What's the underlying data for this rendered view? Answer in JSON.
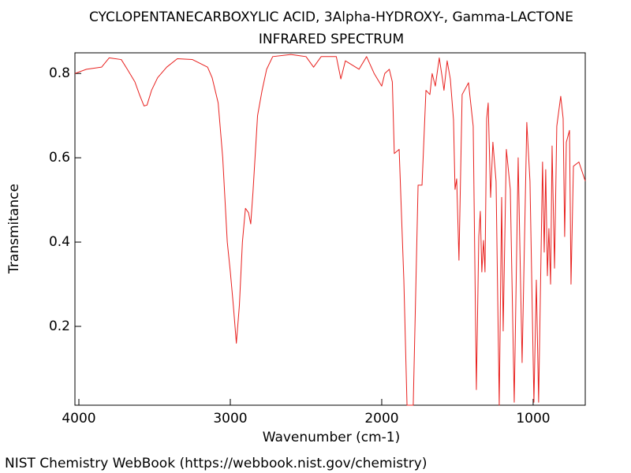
{
  "chart_data": {
    "type": "line",
    "title": "CYCLOPENTANECARBOXYLIC ACID, 3Alpha-HYDROXY-, Gamma-LACTONE",
    "subtitle": "INFRARED SPECTRUM",
    "x_label": "Wavenumber (cm-1)",
    "y_label": "Transmitance",
    "x": [
      4026,
      3950,
      3850,
      3800,
      3720,
      3680,
      3630,
      3600,
      3570,
      3550,
      3520,
      3480,
      3420,
      3350,
      3250,
      3150,
      3120,
      3080,
      3050,
      3020,
      3000,
      2980,
      2960,
      2940,
      2920,
      2900,
      2880,
      2865,
      2850,
      2820,
      2790,
      2760,
      2720,
      2600,
      2500,
      2450,
      2400,
      2300,
      2270,
      2240,
      2150,
      2100,
      2050,
      2000,
      1980,
      1950,
      1930,
      1917,
      1885,
      1854,
      1833,
      1792,
      1760,
      1734,
      1708,
      1682,
      1667,
      1646,
      1620,
      1599,
      1589,
      1568,
      1547,
      1526,
      1516,
      1505,
      1490,
      1469,
      1427,
      1396,
      1375,
      1359,
      1349,
      1339,
      1328,
      1318,
      1307,
      1297,
      1281,
      1266,
      1245,
      1224,
      1208,
      1198,
      1177,
      1151,
      1125,
      1099,
      1073,
      1042,
      1021,
      995,
      979,
      964,
      938,
      927,
      917,
      906,
      896,
      885,
      875,
      859,
      844,
      818,
      802,
      792,
      781,
      760,
      750,
      734,
      698,
      656
    ],
    "series": [
      {
        "name": "spectrum",
        "color": "#e8201e",
        "values": [
          0.8,
          0.81,
          0.815,
          0.837,
          0.833,
          0.81,
          0.78,
          0.75,
          0.723,
          0.725,
          0.76,
          0.79,
          0.815,
          0.835,
          0.833,
          0.815,
          0.79,
          0.73,
          0.6,
          0.4,
          0.33,
          0.25,
          0.16,
          0.25,
          0.4,
          0.48,
          0.47,
          0.443,
          0.52,
          0.7,
          0.76,
          0.81,
          0.84,
          0.845,
          0.84,
          0.815,
          0.84,
          0.84,
          0.787,
          0.83,
          0.81,
          0.84,
          0.8,
          0.77,
          0.8,
          0.81,
          0.78,
          0.61,
          0.62,
          0.31,
          0.013,
          0.013,
          0.535,
          0.535,
          0.76,
          0.75,
          0.8,
          0.77,
          0.837,
          0.787,
          0.76,
          0.83,
          0.787,
          0.69,
          0.525,
          0.55,
          0.357,
          0.75,
          0.778,
          0.675,
          0.05,
          0.413,
          0.473,
          0.329,
          0.404,
          0.329,
          0.693,
          0.73,
          0.506,
          0.637,
          0.544,
          0.013,
          0.506,
          0.189,
          0.62,
          0.525,
          0.02,
          0.6,
          0.114,
          0.684,
          0.544,
          0.02,
          0.31,
          0.02,
          0.59,
          0.376,
          0.572,
          0.32,
          0.432,
          0.3,
          0.628,
          0.338,
          0.675,
          0.746,
          0.693,
          0.413,
          0.637,
          0.665,
          0.3,
          0.58,
          0.59,
          0.545
        ]
      }
    ],
    "xlim": [
      4026,
      656
    ],
    "ylim": [
      0.013,
      0.849
    ],
    "xticks": [
      4000,
      3000,
      2000,
      1000
    ],
    "yticks": [
      0.2,
      0.4,
      0.6,
      0.8
    ]
  },
  "footer": "NIST Chemistry WebBook (https://webbook.nist.gov/chemistry)"
}
